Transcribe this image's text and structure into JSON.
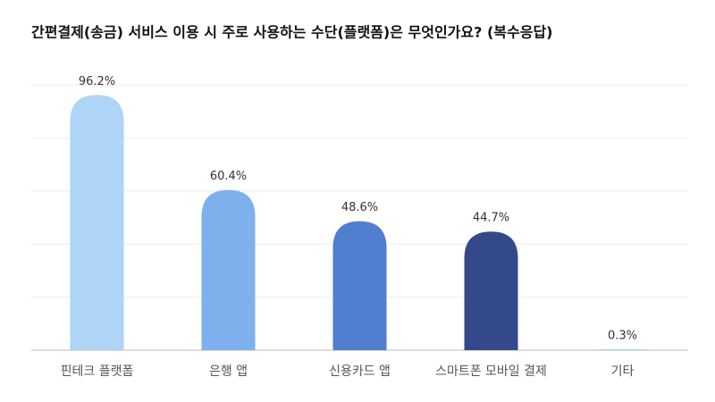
{
  "chart_data": {
    "type": "bar",
    "title": "간편결제(송금) 서비스 이용 시 주로 사용하는 수단(플랫폼)은 무엇인가요? (복수응답)",
    "categories": [
      "핀테크 플랫폼",
      "은행 앱",
      "신용카드 앱",
      "스마트폰 모바일 결제",
      "기타"
    ],
    "values": [
      96.2,
      60.4,
      48.6,
      44.7,
      0.3
    ],
    "value_labels": [
      "96.2%",
      "60.4%",
      "48.6%",
      "44.7%",
      "0.3%"
    ],
    "colors": [
      "#aed4f6",
      "#7fb0ee",
      "#527ecf",
      "#34498a",
      "#8fd0f2"
    ],
    "ylim": [
      0,
      100
    ],
    "yticks": [
      0,
      20,
      40,
      60,
      80,
      100
    ],
    "grid": true
  }
}
